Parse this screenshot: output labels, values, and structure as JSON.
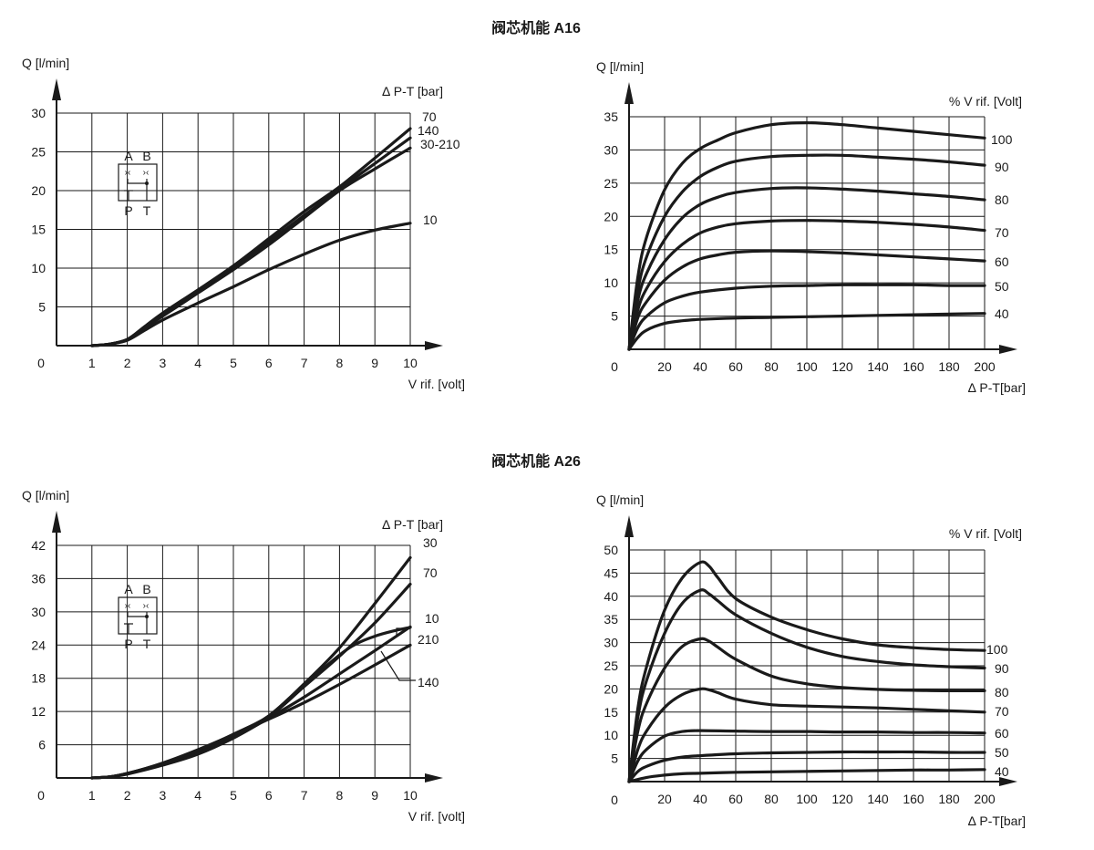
{
  "sections": [
    {
      "title": "阀芯机能 A16"
    },
    {
      "title": "阀芯机能 A26"
    }
  ],
  "symbol": {
    "top_labels": [
      "A",
      "B"
    ],
    "bottom_labels": [
      "P",
      "T"
    ]
  },
  "chart_data": [
    {
      "id": "a16-left",
      "type": "line",
      "title": "",
      "ylabel": "Q [l/min]",
      "xlabel": "V rif. [volt]",
      "legend_title": "∆ P-T [bar]",
      "x_ticks": [
        "1",
        "2",
        "3",
        "4",
        "5",
        "6",
        "7",
        "8",
        "9",
        "10"
      ],
      "y_ticks": [
        "5",
        "10",
        "15",
        "20",
        "25",
        "30"
      ],
      "origin_label": "0",
      "xlim": [
        0,
        10
      ],
      "ylim": [
        0,
        30
      ],
      "series": [
        {
          "name": "70",
          "x": [
            1,
            1.5,
            2,
            2.5,
            3,
            4,
            5,
            6,
            7,
            8,
            9,
            10
          ],
          "y": [
            0,
            0.2,
            0.8,
            2.5,
            4.2,
            7.2,
            10.3,
            13.8,
            17.3,
            20.5,
            24.2,
            28
          ]
        },
        {
          "name": "140",
          "x": [
            1,
            1.5,
            2,
            2.5,
            3,
            4,
            5,
            6,
            7,
            8,
            9,
            10
          ],
          "y": [
            0,
            0.2,
            0.8,
            2.4,
            4.0,
            7.0,
            10.0,
            13.4,
            16.8,
            20.2,
            23.5,
            26.8
          ]
        },
        {
          "name": "30-210",
          "x": [
            1,
            1.5,
            2,
            2.5,
            3,
            4,
            5,
            6,
            7,
            8,
            9,
            10
          ],
          "y": [
            0,
            0.2,
            0.8,
            2.3,
            3.8,
            6.8,
            9.8,
            13.0,
            16.5,
            20.0,
            22.8,
            25.5
          ]
        },
        {
          "name": "10",
          "x": [
            1,
            1.5,
            2,
            2.5,
            3,
            4,
            5,
            6,
            7,
            8,
            9,
            10
          ],
          "y": [
            0,
            0.2,
            0.7,
            2.0,
            3.3,
            5.5,
            7.6,
            9.8,
            11.8,
            13.6,
            14.9,
            15.8
          ]
        }
      ]
    },
    {
      "id": "a16-right",
      "type": "line",
      "title": "",
      "ylabel": "Q [l/min]",
      "xlabel": "∆ P-T[bar]",
      "legend_title": "% V rif. [Volt]",
      "x_ticks": [
        "20",
        "40",
        "60",
        "80",
        "100",
        "120",
        "140",
        "160",
        "180",
        "200"
      ],
      "y_ticks": [
        "5",
        "10",
        "15",
        "20",
        "25",
        "30",
        "35"
      ],
      "origin_label": "0",
      "xlim": [
        0,
        200
      ],
      "ylim": [
        0,
        35
      ],
      "series": [
        {
          "name": "100",
          "x": [
            0,
            5,
            10,
            20,
            30,
            40,
            50,
            60,
            80,
            100,
            120,
            140,
            160,
            180,
            200
          ],
          "y": [
            0,
            11,
            17,
            24,
            28,
            30.2,
            31.5,
            32.6,
            33.8,
            34.1,
            33.8,
            33.3,
            32.8,
            32.3,
            31.8
          ]
        },
        {
          "name": "90",
          "x": [
            0,
            5,
            10,
            20,
            30,
            40,
            50,
            60,
            80,
            100,
            120,
            140,
            160,
            180,
            200
          ],
          "y": [
            0,
            9,
            14,
            20,
            23.7,
            26,
            27.4,
            28.3,
            29,
            29.2,
            29.2,
            28.9,
            28.6,
            28.2,
            27.7
          ]
        },
        {
          "name": "80",
          "x": [
            0,
            5,
            10,
            20,
            30,
            40,
            50,
            60,
            80,
            100,
            120,
            140,
            160,
            180,
            200
          ],
          "y": [
            0,
            7.5,
            11.5,
            16.5,
            19.8,
            21.8,
            22.9,
            23.6,
            24.2,
            24.3,
            24.1,
            23.8,
            23.4,
            23,
            22.5
          ]
        },
        {
          "name": "70",
          "x": [
            0,
            5,
            10,
            20,
            30,
            40,
            50,
            60,
            80,
            100,
            120,
            140,
            160,
            180,
            200
          ],
          "y": [
            0,
            6,
            9.2,
            13.2,
            15.8,
            17.5,
            18.4,
            18.9,
            19.3,
            19.4,
            19.3,
            19.1,
            18.8,
            18.4,
            17.9
          ]
        },
        {
          "name": "60",
          "x": [
            0,
            5,
            10,
            20,
            30,
            40,
            50,
            60,
            80,
            100,
            120,
            140,
            160,
            180,
            200
          ],
          "y": [
            0,
            4.8,
            7.2,
            10.4,
            12.4,
            13.6,
            14.2,
            14.6,
            14.8,
            14.7,
            14.5,
            14.2,
            13.9,
            13.6,
            13.3
          ]
        },
        {
          "name": "50",
          "x": [
            0,
            5,
            10,
            20,
            30,
            40,
            60,
            80,
            100,
            120,
            140,
            160,
            180,
            200
          ],
          "y": [
            0,
            3.3,
            5,
            7,
            8,
            8.6,
            9.2,
            9.5,
            9.6,
            9.7,
            9.7,
            9.7,
            9.6,
            9.6
          ]
        },
        {
          "name": "40",
          "x": [
            0,
            5,
            10,
            20,
            30,
            40,
            60,
            80,
            100,
            120,
            140,
            160,
            180,
            200
          ],
          "y": [
            0,
            1.8,
            2.9,
            3.9,
            4.3,
            4.5,
            4.7,
            4.8,
            4.9,
            5,
            5.1,
            5.2,
            5.3,
            5.4
          ]
        }
      ]
    },
    {
      "id": "a26-left",
      "type": "line",
      "title": "",
      "ylabel": "Q [l/min]",
      "xlabel": "V rif. [volt]",
      "legend_title": "∆ P-T [bar]",
      "x_ticks": [
        "1",
        "2",
        "3",
        "4",
        "5",
        "6",
        "7",
        "8",
        "9",
        "10"
      ],
      "y_ticks": [
        "6",
        "12",
        "18",
        "24",
        "30",
        "36",
        "42"
      ],
      "origin_label": "0",
      "xlim": [
        0,
        10
      ],
      "ylim": [
        0,
        42
      ],
      "series": [
        {
          "name": "30",
          "x": [
            1,
            1.5,
            2,
            3,
            4,
            5,
            6,
            7,
            8,
            9,
            10
          ],
          "y": [
            0,
            0.2,
            0.8,
            2.6,
            4.8,
            7.6,
            11.2,
            17,
            23.5,
            31.5,
            39.8
          ]
        },
        {
          "name": "70",
          "x": [
            1,
            1.5,
            2,
            3,
            4,
            5,
            6,
            7,
            8,
            9,
            10
          ],
          "y": [
            0,
            0.2,
            0.8,
            2.5,
            4.6,
            7.4,
            11,
            16.5,
            22,
            28,
            35
          ]
        },
        {
          "name": "10",
          "x": [
            1,
            1.5,
            2,
            3,
            4,
            5,
            6,
            7,
            8,
            8.5,
            9,
            9.5,
            10
          ],
          "y": [
            0,
            0.2,
            0.8,
            2.6,
            5,
            7.9,
            11.2,
            16.8,
            22.2,
            24.3,
            25.6,
            26.5,
            27.2
          ]
        },
        {
          "name": "210",
          "x": [
            1,
            1.5,
            2,
            3,
            4,
            5,
            6,
            7,
            8,
            9,
            10
          ],
          "y": [
            0,
            0.2,
            0.7,
            2.3,
            4.3,
            7.2,
            10.8,
            14.6,
            18.8,
            23,
            27.3
          ]
        },
        {
          "name": "140",
          "x": [
            1,
            1.5,
            2,
            3,
            4,
            5,
            6,
            7,
            8,
            9,
            10
          ],
          "y": [
            0,
            0.2,
            0.8,
            2.7,
            5.1,
            7.8,
            10.6,
            13.6,
            16.9,
            20.4,
            24
          ]
        }
      ]
    },
    {
      "id": "a26-right",
      "type": "line",
      "title": "",
      "ylabel": "Q [l/min]",
      "xlabel": "∆ P-T[bar]",
      "legend_title": "% V rif. [Volt]",
      "x_ticks": [
        "20",
        "40",
        "60",
        "80",
        "100",
        "120",
        "140",
        "160",
        "180",
        "200"
      ],
      "y_ticks": [
        "5",
        "10",
        "15",
        "20",
        "25",
        "30",
        "35",
        "40",
        "45",
        "50"
      ],
      "origin_label": "0",
      "xlim": [
        0,
        200
      ],
      "ylim": [
        0,
        50
      ],
      "series": [
        {
          "name": "100",
          "x": [
            0,
            5,
            10,
            20,
            30,
            40,
            45,
            50,
            60,
            80,
            100,
            120,
            140,
            160,
            180,
            200
          ],
          "y": [
            0,
            16,
            25,
            37,
            44,
            47.3,
            46.5,
            44,
            39.5,
            35.5,
            32.8,
            30.8,
            29.5,
            28.9,
            28.5,
            28.3
          ]
        },
        {
          "name": "90",
          "x": [
            0,
            5,
            10,
            20,
            30,
            40,
            45,
            50,
            60,
            80,
            100,
            120,
            140,
            160,
            180,
            200
          ],
          "y": [
            0,
            14,
            22,
            32,
            38.5,
            41.3,
            40.5,
            39,
            36,
            32,
            29,
            27,
            25.9,
            25.2,
            24.8,
            24.5
          ]
        },
        {
          "name": "80",
          "x": [
            0,
            5,
            10,
            20,
            30,
            40,
            45,
            50,
            60,
            80,
            100,
            120,
            140,
            160,
            180,
            200
          ],
          "y": [
            0,
            11,
            17,
            24.5,
            29.2,
            30.8,
            30.3,
            29,
            26.4,
            22.8,
            21.1,
            20.3,
            19.9,
            19.7,
            19.6,
            19.6
          ]
        },
        {
          "name": "70",
          "x": [
            0,
            5,
            10,
            20,
            30,
            40,
            45,
            50,
            60,
            80,
            100,
            120,
            140,
            160,
            180,
            200
          ],
          "y": [
            0,
            7,
            11,
            16,
            18.8,
            20,
            19.8,
            19.2,
            17.8,
            16.6,
            16.3,
            16.1,
            15.9,
            15.6,
            15.3,
            15
          ]
        },
        {
          "name": "60",
          "x": [
            0,
            5,
            10,
            20,
            30,
            40,
            60,
            80,
            100,
            120,
            140,
            160,
            180,
            200
          ],
          "y": [
            0,
            4.5,
            7,
            9.8,
            10.8,
            11,
            10.9,
            10.8,
            10.8,
            10.7,
            10.7,
            10.6,
            10.6,
            10.5
          ]
        },
        {
          "name": "50",
          "x": [
            0,
            5,
            10,
            20,
            30,
            40,
            60,
            80,
            100,
            120,
            140,
            160,
            180,
            200
          ],
          "y": [
            0,
            2.2,
            3.3,
            4.6,
            5.3,
            5.6,
            6,
            6.2,
            6.3,
            6.4,
            6.4,
            6.4,
            6.3,
            6.3
          ]
        },
        {
          "name": "40",
          "x": [
            0,
            10,
            20,
            30,
            40,
            60,
            80,
            100,
            120,
            140,
            160,
            180,
            200
          ],
          "y": [
            0,
            0.9,
            1.4,
            1.7,
            1.8,
            2,
            2.1,
            2.2,
            2.3,
            2.4,
            2.5,
            2.5,
            2.6
          ]
        }
      ]
    }
  ]
}
